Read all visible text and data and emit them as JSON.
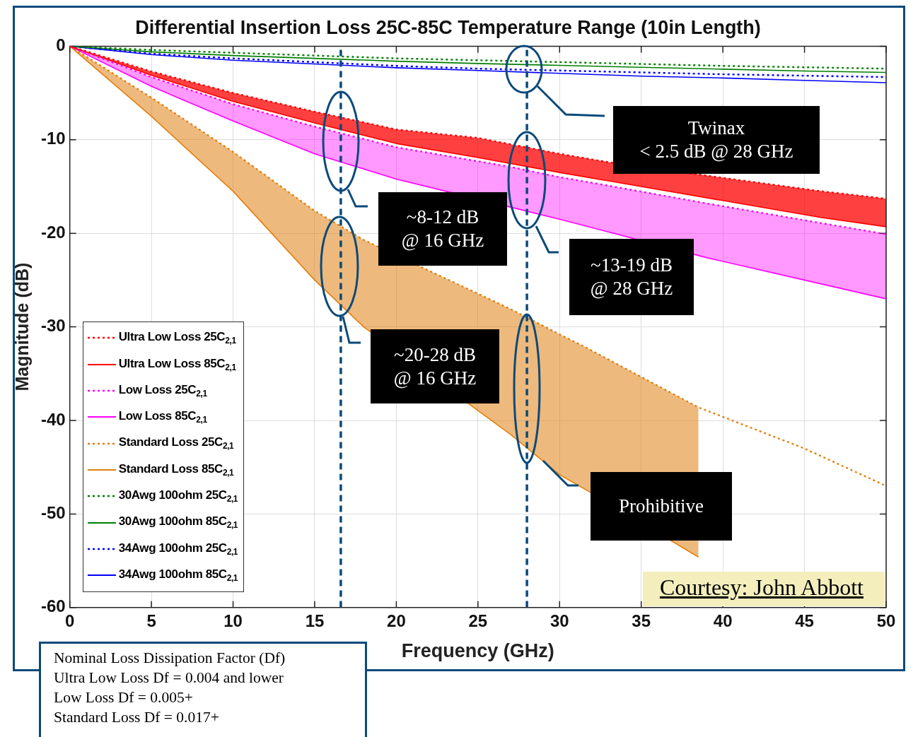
{
  "chart_data": {
    "type": "line",
    "title": "Differential Insertion Loss 25C-85C Temperature Range (10in Length)",
    "xlabel": "Frequency (GHz)",
    "ylabel": "Magnitude (dB)",
    "x": [
      0,
      5,
      10,
      15,
      20,
      25,
      30,
      35,
      40,
      45,
      50
    ],
    "xlim": [
      0,
      50
    ],
    "xticks": [
      0,
      5,
      10,
      15,
      20,
      25,
      30,
      35,
      40,
      45,
      50
    ],
    "ylim": [
      -60,
      0
    ],
    "yticks": [
      -60,
      -50,
      -40,
      -30,
      -20,
      -10,
      0
    ],
    "grid": true,
    "legend": "bottom left",
    "marker": "none",
    "series": [
      {
        "name": "Ultra Low Loss 25C$_{2,1}$",
        "color": "#ff0000",
        "line_style": "dotted",
        "x": [
          0,
          5,
          10,
          15,
          20,
          25,
          30,
          33,
          46,
          50
        ],
        "values": [
          0,
          -2.7,
          -5,
          -7,
          -8.9,
          -9.8,
          -11.5,
          -12.4,
          -15.5,
          -16.3
        ]
      },
      {
        "name": "Ultra Low Loss 85C$_{2,1}$",
        "color": "#ff0000",
        "type": "area",
        "line_style": "solid",
        "x": [
          0,
          5,
          10,
          15,
          20,
          25,
          30,
          33,
          46,
          50
        ],
        "values": [
          0,
          -3.1,
          -5.9,
          -8.2,
          -10.4,
          -11.9,
          -13.5,
          -14.4,
          -18.3,
          -19.3
        ]
      },
      {
        "name": "Low Loss 25C$_{2,1}$",
        "color": "#ff00ff",
        "line_style": "dotted",
        "x": [
          0,
          5,
          10,
          15,
          20,
          27,
          30,
          32,
          39,
          45,
          50
        ],
        "values": [
          0,
          -3.3,
          -6.2,
          -8.6,
          -10.8,
          -12.9,
          -14,
          -14.6,
          -16.8,
          -18.6,
          -20.1
        ]
      },
      {
        "name": "Low Loss 85C$_{2,1}$",
        "color": "#ff00ff",
        "type": "area",
        "line_style": "solid",
        "x": [
          0,
          5,
          10,
          15,
          20,
          27,
          30,
          32,
          39,
          45,
          50
        ],
        "values": [
          0,
          -4.3,
          -8,
          -11.5,
          -14.2,
          -17.2,
          -18.5,
          -19.4,
          -22.6,
          -25,
          -27
        ]
      },
      {
        "name": "Standard Loss 25C$_{2,1}$",
        "color": "#e08010",
        "line_style": "dotted",
        "x": [
          0,
          5,
          10,
          15,
          18,
          27,
          30,
          31.5,
          38.5,
          45,
          50
        ],
        "values": [
          0,
          -5.5,
          -11.3,
          -17.6,
          -20.7,
          -28.1,
          -30.8,
          -32.1,
          -38.6,
          -43,
          -47
        ]
      },
      {
        "name": "Standard Loss 85C$_{2,1}$",
        "color": "#e08010",
        "type": "area",
        "line_style": "solid",
        "x": [
          0,
          5,
          10,
          15,
          18,
          27,
          30,
          31.5,
          38.5
        ],
        "values": [
          0,
          -7.5,
          -15.5,
          -25,
          -30,
          -41.5,
          -45.8,
          -47.3,
          -54.6
        ]
      },
      {
        "name": "30Awg 100ohm 25C$_{2,1}$",
        "color": "#008000",
        "line_style": "dotted",
        "values": [
          0,
          -0.4,
          -0.7,
          -1,
          -1.3,
          -1.5,
          -1.7,
          -1.9,
          -2.1,
          -2.25,
          -2.4
        ]
      },
      {
        "name": "30Awg 100ohm 85C$_{2,1}$",
        "color": "#008000",
        "line_style": "solid",
        "values": [
          0,
          -0.6,
          -1,
          -1.3,
          -1.6,
          -1.85,
          -2.05,
          -2.25,
          -2.45,
          -2.65,
          -2.8
        ]
      },
      {
        "name": "34Awg 100ohm 25C$_{2,1}$",
        "color": "#0000ff",
        "line_style": "dotted",
        "values": [
          0,
          -0.8,
          -1.3,
          -1.7,
          -2.1,
          -2.4,
          -2.6,
          -2.8,
          -3,
          -3.15,
          -3.3
        ]
      },
      {
        "name": "34Awg 100ohm 85C$_{2,1}$",
        "color": "#0000ff",
        "line_style": "solid",
        "values": [
          0,
          -0.9,
          -1.5,
          -1.9,
          -2.3,
          -2.6,
          -2.9,
          -3.2,
          -3.4,
          -3.65,
          -3.9
        ]
      }
    ],
    "ref_lines": [
      {
        "axis": "x",
        "value": 16.6,
        "color": "#0b4a7a",
        "line_style": "dashed"
      },
      {
        "axis": "x",
        "value": 28,
        "color": "#0b4a7a",
        "line_style": "dashed"
      }
    ],
    "annotations": [
      "Twinax\n< 2.5 dB @ 28 GHz",
      "~8-12 dB\n@ 16 GHz",
      "~13-19 dB\n@ 28 GHz",
      "~20-28 dB\n@ 16 GHz",
      "Prohibitive",
      "Courtesy: John Abbott",
      "Nominal Loss Dissipation Factor (Df)\nUltra Low Loss Df = 0.004 and lower\nLow Loss Df = 0.005+\nStandard Loss Df = 0.017+"
    ]
  }
}
